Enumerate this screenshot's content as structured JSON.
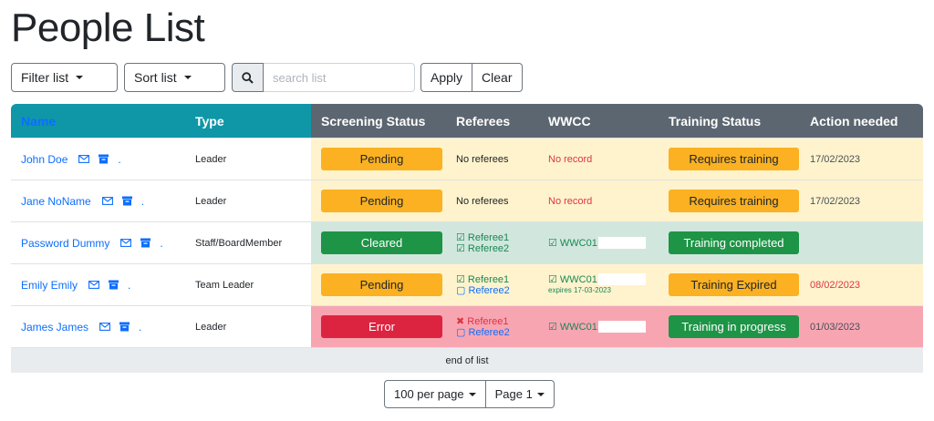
{
  "page": {
    "title": "People List"
  },
  "toolbar": {
    "filter_label": "Filter list",
    "sort_label": "Sort list",
    "search_placeholder": "search list",
    "search_icon": "magnifier-icon",
    "apply_label": "Apply",
    "clear_label": "Clear"
  },
  "table": {
    "headers": [
      "Name",
      "Type",
      "Screening Status",
      "Referees",
      "WWCC",
      "Training Status",
      "Action needed"
    ],
    "rows": [
      {
        "name": "John Doe",
        "type": "Leader",
        "screening": "Pending",
        "referees": "No referees",
        "wwcc": "No record",
        "training": "Requires training",
        "action": "17/02/2023"
      },
      {
        "name": "Jane NoName",
        "type": "Leader",
        "screening": "Pending",
        "referees": "No referees",
        "wwcc": "No record",
        "training": "Requires training",
        "action": "17/02/2023"
      },
      {
        "name": "Password Dummy",
        "type": "Staff/BoardMember",
        "screening": "Cleared",
        "referee1": "☑ Referee1",
        "referee2": "☑ Referee2",
        "wwcc": "☑ WWC01",
        "training": "Training completed",
        "action": ""
      },
      {
        "name": "Emily Emily",
        "type": "Team Leader",
        "screening": "Pending",
        "referee1": "☑ Referee1",
        "referee2": "▢ Referee2",
        "wwcc": "☑ WWC01",
        "wwcc_expires": "expires 17-03-2023",
        "training": "Training Expired",
        "action": "08/02/2023"
      },
      {
        "name": "James James",
        "type": "Leader",
        "screening": "Error",
        "referee1": "✖ Referee1",
        "referee2": "▢ Referee2",
        "wwcc": "☑ WWC01",
        "training": "Training in progress",
        "action": "01/03/2023"
      }
    ],
    "row_dot": ".",
    "footer": "end of list"
  },
  "pager": {
    "per_page_label": "100 per page",
    "page_label": "Page 1"
  },
  "colors": {
    "teal_header": "#0f97a8",
    "grey_header": "#5c6670",
    "warning": "#fbb121",
    "success": "#1d9446",
    "danger": "#dc2440",
    "link": "#0d6efd"
  }
}
